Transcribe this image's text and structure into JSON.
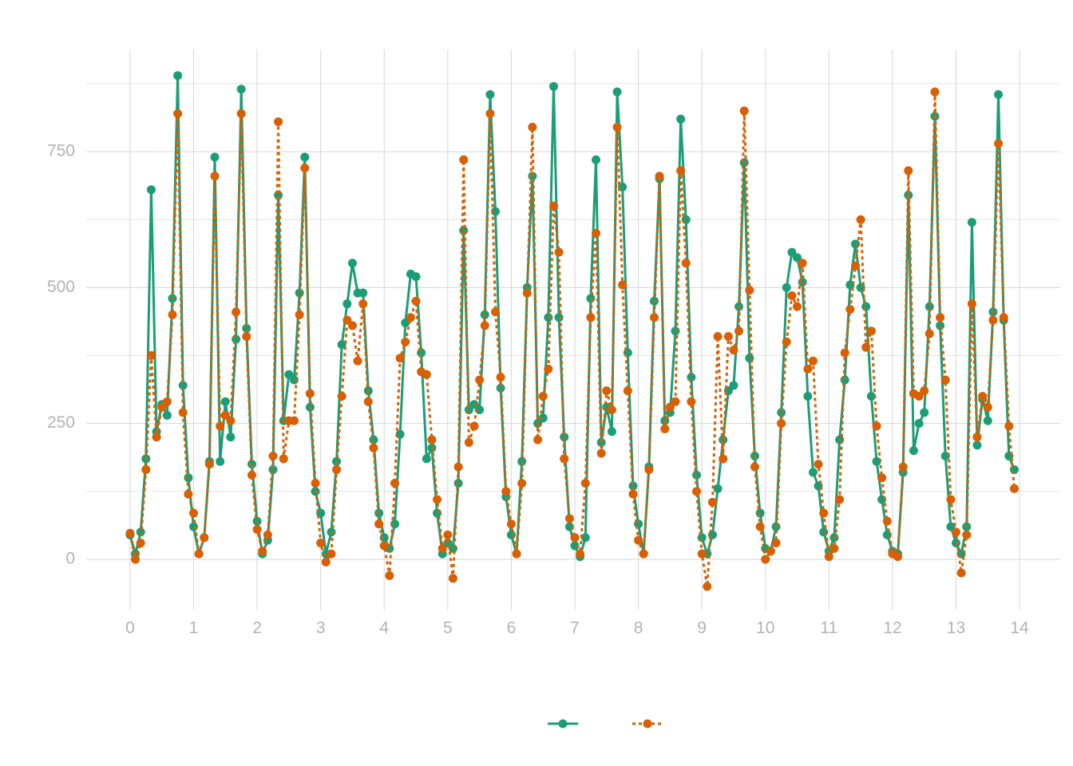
{
  "chart_data": {
    "type": "line",
    "x": [
      0,
      0.083,
      0.167,
      0.25,
      0.333,
      0.417,
      0.5,
      0.583,
      0.667,
      0.75,
      0.833,
      0.917,
      1,
      1.083,
      1.167,
      1.25,
      1.333,
      1.417,
      1.5,
      1.583,
      1.667,
      1.75,
      1.833,
      1.917,
      2,
      2.083,
      2.167,
      2.25,
      2.333,
      2.417,
      2.5,
      2.583,
      2.667,
      2.75,
      2.833,
      2.917,
      3,
      3.083,
      3.167,
      3.25,
      3.333,
      3.417,
      3.5,
      3.583,
      3.667,
      3.75,
      3.833,
      3.917,
      4,
      4.083,
      4.167,
      4.25,
      4.333,
      4.417,
      4.5,
      4.583,
      4.667,
      4.75,
      4.833,
      4.917,
      5,
      5.083,
      5.167,
      5.25,
      5.333,
      5.417,
      5.5,
      5.583,
      5.667,
      5.75,
      5.833,
      5.917,
      6,
      6.083,
      6.167,
      6.25,
      6.333,
      6.417,
      6.5,
      6.583,
      6.667,
      6.75,
      6.833,
      6.917,
      7,
      7.083,
      7.167,
      7.25,
      7.333,
      7.417,
      7.5,
      7.583,
      7.667,
      7.75,
      7.833,
      7.917,
      8,
      8.083,
      8.167,
      8.25,
      8.333,
      8.417,
      8.5,
      8.583,
      8.667,
      8.75,
      8.833,
      8.917,
      9,
      9.083,
      9.167,
      9.25,
      9.333,
      9.417,
      9.5,
      9.583,
      9.667,
      9.75,
      9.833,
      9.917,
      10,
      10.083,
      10.167,
      10.25,
      10.333,
      10.417,
      10.5,
      10.583,
      10.667,
      10.75,
      10.833,
      10.917,
      11,
      11.083,
      11.167,
      11.25,
      11.333,
      11.417,
      11.5,
      11.583,
      11.667,
      11.75,
      11.833,
      11.917,
      12,
      12.083,
      12.167,
      12.25,
      12.333,
      12.417,
      12.5,
      12.583,
      12.667,
      12.75,
      12.833,
      12.917,
      13,
      13.083,
      13.167,
      13.25,
      13.333,
      13.417,
      13.5,
      13.583,
      13.667,
      13.75,
      13.833,
      13.917
    ],
    "series": [
      {
        "color": "#1b9e77",
        "dash": "solid",
        "values": [
          45,
          10,
          50,
          185,
          680,
          235,
          285,
          265,
          480,
          890,
          320,
          150,
          60,
          10,
          40,
          180,
          740,
          180,
          290,
          225,
          405,
          865,
          425,
          175,
          70,
          10,
          35,
          165,
          670,
          255,
          340,
          330,
          490,
          740,
          280,
          125,
          85,
          10,
          50,
          180,
          395,
          470,
          545,
          490,
          490,
          310,
          220,
          85,
          40,
          20,
          65,
          230,
          435,
          525,
          520,
          380,
          185,
          205,
          85,
          10,
          30,
          20,
          140,
          605,
          275,
          285,
          275,
          450,
          855,
          640,
          315,
          115,
          45,
          10,
          180,
          500,
          705,
          250,
          260,
          445,
          870,
          445,
          225,
          60,
          25,
          5,
          40,
          480,
          735,
          215,
          280,
          235,
          860,
          685,
          380,
          135,
          65,
          10,
          170,
          475,
          700,
          255,
          270,
          420,
          810,
          625,
          335,
          155,
          40,
          10,
          45,
          130,
          220,
          310,
          320,
          465,
          730,
          370,
          190,
          85,
          20,
          15,
          60,
          270,
          500,
          565,
          555,
          510,
          300,
          160,
          135,
          50,
          15,
          40,
          220,
          330,
          505,
          580,
          500,
          465,
          300,
          180,
          110,
          45,
          15,
          10,
          160,
          670,
          200,
          250,
          270,
          465,
          815,
          430,
          190,
          60,
          30,
          10,
          60,
          620,
          210,
          295,
          255,
          455,
          855,
          440,
          190,
          165
        ]
      },
      {
        "color": "#d95f02",
        "dash": "dotted",
        "values": [
          48,
          0,
          30,
          165,
          375,
          225,
          280,
          290,
          450,
          820,
          270,
          120,
          85,
          10,
          40,
          175,
          705,
          245,
          265,
          255,
          455,
          820,
          410,
          155,
          55,
          15,
          45,
          190,
          805,
          185,
          255,
          255,
          450,
          720,
          305,
          140,
          30,
          -5,
          10,
          165,
          300,
          440,
          430,
          365,
          470,
          290,
          205,
          65,
          25,
          -30,
          140,
          370,
          400,
          445,
          475,
          345,
          340,
          220,
          110,
          20,
          45,
          -35,
          170,
          735,
          215,
          245,
          330,
          430,
          820,
          455,
          335,
          125,
          65,
          10,
          140,
          490,
          795,
          220,
          300,
          350,
          650,
          565,
          185,
          75,
          40,
          10,
          140,
          445,
          600,
          195,
          310,
          275,
          795,
          505,
          310,
          120,
          35,
          10,
          165,
          445,
          705,
          240,
          280,
          290,
          715,
          545,
          290,
          125,
          10,
          -50,
          105,
          410,
          185,
          410,
          385,
          420,
          825,
          495,
          170,
          60,
          0,
          15,
          30,
          250,
          400,
          485,
          465,
          545,
          350,
          365,
          175,
          85,
          5,
          20,
          110,
          380,
          460,
          540,
          625,
          390,
          420,
          245,
          150,
          70,
          10,
          5,
          170,
          715,
          305,
          300,
          310,
          415,
          860,
          445,
          330,
          110,
          50,
          -25,
          45,
          470,
          225,
          300,
          280,
          440,
          765,
          445,
          245,
          130
        ]
      }
    ],
    "xlim": [
      -0.69,
      14.64
    ],
    "xticks": [
      0,
      1,
      2,
      3,
      4,
      5,
      6,
      7,
      8,
      9,
      10,
      11,
      12,
      13,
      14
    ],
    "ylim": [
      -94,
      938
    ],
    "yticks": [
      0,
      250,
      500,
      750
    ],
    "yminor": [
      125,
      375,
      625,
      875
    ],
    "grid": true,
    "legend": "bottom"
  }
}
